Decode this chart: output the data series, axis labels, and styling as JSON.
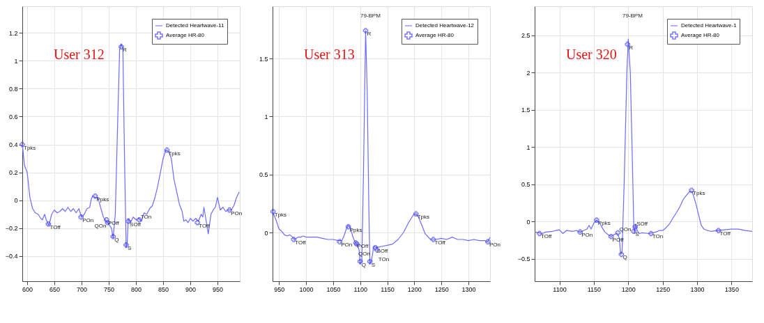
{
  "chart_data": [
    {
      "type": "line",
      "grid": true,
      "legend": "top right",
      "xlim": [
        591,
        991
      ],
      "xticks": [
        600,
        650,
        700,
        750,
        800,
        850,
        900,
        950
      ],
      "ylim": [
        -0.58,
        1.39
      ],
      "yticks": [
        -0.4,
        -0.2,
        0,
        0.2,
        0.4,
        0.6,
        0.8,
        1,
        1.2
      ],
      "annotations": [
        "User 312"
      ],
      "series": [
        {
          "name": "Detected Heartwave-11",
          "color": "#6b6bff",
          "line_style": "solid",
          "x": [
            591,
            595,
            600,
            605,
            610,
            615,
            620,
            625,
            628,
            632,
            635,
            640,
            645,
            650,
            655,
            660,
            665,
            670,
            675,
            680,
            685,
            690,
            695,
            700,
            705,
            710,
            715,
            718,
            720,
            725,
            730,
            735,
            740,
            745,
            750,
            755,
            758,
            762,
            766,
            770,
            773,
            776,
            779,
            782,
            784,
            786,
            790,
            795,
            800,
            805,
            810,
            815,
            820,
            825,
            830,
            835,
            840,
            845,
            850,
            855,
            860,
            865,
            870,
            875,
            880,
            885,
            888,
            892,
            896,
            900,
            905,
            910,
            915,
            920,
            923,
            925,
            928,
            933,
            938,
            942,
            946,
            950,
            955,
            960,
            965,
            970,
            975,
            980,
            985,
            990
          ],
          "values": [
            0.4,
            0.25,
            0.2,
            0.02,
            -0.06,
            -0.09,
            -0.1,
            -0.13,
            -0.14,
            -0.1,
            -0.14,
            -0.18,
            -0.1,
            -0.07,
            -0.09,
            -0.08,
            -0.06,
            -0.08,
            -0.05,
            -0.08,
            -0.06,
            -0.09,
            -0.06,
            -0.12,
            -0.1,
            -0.06,
            -0.05,
            0.01,
            0.03,
            0.02,
            0.02,
            -0.05,
            -0.12,
            -0.15,
            -0.17,
            -0.2,
            -0.27,
            -0.1,
            0.5,
            1.08,
            1.12,
            1.08,
            0.3,
            -0.34,
            -0.3,
            -0.13,
            -0.16,
            -0.12,
            -0.14,
            -0.13,
            -0.15,
            -0.09,
            -0.1,
            -0.06,
            -0.04,
            0.02,
            0.1,
            0.2,
            0.3,
            0.36,
            0.35,
            0.3,
            0.15,
            0.06,
            -0.03,
            -0.08,
            -0.15,
            -0.14,
            -0.16,
            -0.13,
            -0.15,
            -0.13,
            -0.15,
            -0.1,
            -0.12,
            -0.05,
            -0.12,
            -0.24,
            -0.1,
            -0.07,
            -0.05,
            0.02,
            -0.07,
            -0.05,
            -0.08,
            -0.07,
            -0.07,
            -0.04,
            0.02,
            0.06
          ]
        },
        {
          "name": "Average HR-80",
          "type": "scatter",
          "marker": "cross",
          "color": "#3b3bff",
          "x": [
            591,
            639,
            699,
            725,
            746,
            748,
            758,
            773,
            782,
            786,
            806,
            857,
            913,
            972
          ],
          "values": [
            0.4,
            -0.17,
            -0.12,
            0.03,
            -0.14,
            -0.16,
            -0.26,
            1.1,
            -0.32,
            -0.15,
            -0.14,
            0.36,
            -0.16,
            -0.07
          ],
          "value_labels": [
            "Tpks",
            "TOff",
            "POn",
            "Ppks",
            "POff",
            "QOn",
            "Q",
            "R",
            "S",
            "SOff",
            "TOn",
            "Tpks",
            "TOff",
            "POn"
          ]
        }
      ]
    },
    {
      "type": "line",
      "grid": true,
      "legend": "top right",
      "xlim": [
        938,
        1340
      ],
      "xticks": [
        950,
        1000,
        1050,
        1100,
        1150,
        1200,
        1250,
        1300
      ],
      "ylim": [
        -0.42,
        1.95
      ],
      "yticks": [
        0,
        0.5,
        1,
        1.5
      ],
      "annotations": [
        "User 313",
        "79-BPM"
      ],
      "series": [
        {
          "name": "Detected Heartwave-12",
          "color": "#6b6bff",
          "line_style": "solid",
          "x": [
            938,
            945,
            950,
            955,
            960,
            965,
            970,
            975,
            978,
            985,
            990,
            995,
            1000,
            1010,
            1020,
            1030,
            1040,
            1050,
            1060,
            1066,
            1070,
            1075,
            1078,
            1082,
            1086,
            1090,
            1094,
            1098,
            1100,
            1103,
            1106,
            1110,
            1113,
            1116,
            1118,
            1121,
            1125,
            1130,
            1140,
            1150,
            1160,
            1170,
            1180,
            1190,
            1198,
            1203,
            1208,
            1215,
            1220,
            1230,
            1240,
            1250,
            1260,
            1270,
            1280,
            1290,
            1300,
            1310,
            1320,
            1330,
            1336,
            1340
          ],
          "values": [
            0.18,
            0.1,
            0.03,
            0.01,
            -0.02,
            -0.03,
            -0.02,
            -0.04,
            -0.06,
            -0.04,
            -0.04,
            -0.03,
            -0.04,
            -0.04,
            -0.04,
            -0.05,
            -0.06,
            -0.06,
            -0.07,
            -0.07,
            -0.03,
            0.04,
            0.06,
            0.04,
            -0.03,
            -0.08,
            -0.1,
            -0.15,
            -0.27,
            -0.25,
            0.5,
            1.74,
            1.2,
            0.2,
            -0.27,
            -0.24,
            -0.12,
            -0.13,
            -0.12,
            -0.11,
            -0.1,
            -0.06,
            0.0,
            0.09,
            0.15,
            0.16,
            0.13,
            0.05,
            -0.01,
            -0.06,
            -0.06,
            -0.05,
            -0.06,
            -0.04,
            -0.06,
            -0.06,
            -0.07,
            -0.06,
            -0.07,
            -0.07,
            -0.08,
            -0.04
          ]
        },
        {
          "name": "Average HR-80",
          "type": "scatter",
          "marker": "cross",
          "color": "#3b3bff",
          "x": [
            939,
            977,
            1062,
            1078,
            1092,
            1094,
            1100,
            1110,
            1118,
            1128,
            1131,
            1203,
            1235,
            1336
          ],
          "values": [
            0.18,
            -0.06,
            -0.08,
            0.05,
            -0.09,
            -0.1,
            -0.25,
            1.74,
            -0.25,
            -0.13,
            -0.15,
            0.16,
            -0.06,
            -0.08
          ],
          "value_labels": [
            "Tpks",
            "TOff",
            "POn",
            "Ppks",
            "POff",
            "QOn",
            "Q",
            "R",
            "S",
            "SOff",
            "TOn",
            "Tpks",
            "TOff",
            "POn"
          ]
        }
      ]
    },
    {
      "type": "line",
      "grid": true,
      "legend": "top right",
      "xlim": [
        1064,
        1380
      ],
      "xticks": [
        1100,
        1150,
        1200,
        1250,
        1300,
        1350
      ],
      "ylim": [
        -0.8,
        2.89
      ],
      "yticks": [
        -0.5,
        0,
        0.5,
        1,
        1.5,
        2,
        2.5
      ],
      "annotations": [
        "User 320",
        "79-BPM"
      ],
      "series": [
        {
          "name": "Detected Heartwave-1",
          "color": "#6b6bff",
          "line_style": "solid",
          "x": [
            1064,
            1070,
            1075,
            1080,
            1090,
            1095,
            1100,
            1105,
            1110,
            1120,
            1125,
            1130,
            1135,
            1140,
            1143,
            1146,
            1150,
            1154,
            1158,
            1162,
            1166,
            1170,
            1175,
            1180,
            1184,
            1187,
            1189,
            1191,
            1194,
            1198,
            1200,
            1203,
            1206,
            1208,
            1209,
            1211,
            1213,
            1216,
            1220,
            1230,
            1240,
            1245,
            1250,
            1255,
            1260,
            1265,
            1270,
            1275,
            1280,
            1285,
            1290,
            1293,
            1298,
            1302,
            1306,
            1310,
            1315,
            1320,
            1330,
            1340,
            1350,
            1360,
            1370,
            1380
          ],
          "values": [
            -0.14,
            -0.15,
            -0.16,
            -0.14,
            -0.13,
            -0.12,
            -0.11,
            -0.16,
            -0.12,
            -0.13,
            -0.12,
            -0.14,
            -0.12,
            -0.1,
            -0.05,
            -0.1,
            -0.02,
            0.02,
            -0.01,
            -0.08,
            -0.14,
            -0.17,
            -0.2,
            -0.17,
            -0.16,
            -0.22,
            -0.44,
            -0.4,
            0.5,
            2.0,
            2.45,
            2.0,
            0.8,
            -0.05,
            -0.15,
            -0.03,
            -0.12,
            -0.16,
            -0.15,
            -0.16,
            -0.14,
            -0.12,
            -0.12,
            -0.08,
            -0.03,
            0.05,
            0.12,
            0.2,
            0.3,
            0.36,
            0.41,
            0.4,
            0.25,
            0.1,
            -0.05,
            -0.1,
            -0.12,
            -0.13,
            -0.12,
            -0.11,
            -0.1,
            -0.1,
            -0.12,
            -0.13
          ]
        },
        {
          "name": "Average HR-80",
          "type": "scatter",
          "marker": "cross",
          "color": "#3b3bff",
          "x": [
            1071,
            1130,
            1154,
            1175,
            1185,
            1190,
            1199,
            1208,
            1210,
            1233,
            1292,
            1331
          ],
          "values": [
            -0.16,
            -0.14,
            0.02,
            -0.2,
            -0.15,
            -0.44,
            2.38,
            -0.13,
            -0.07,
            -0.16,
            0.42,
            -0.12
          ],
          "value_labels": [
            "TOff",
            "POn",
            "Ppks",
            "POff",
            "QOn",
            "Q",
            "R",
            "S",
            "SOff",
            "TOn",
            "Tpks",
            "TOff"
          ]
        }
      ]
    }
  ]
}
